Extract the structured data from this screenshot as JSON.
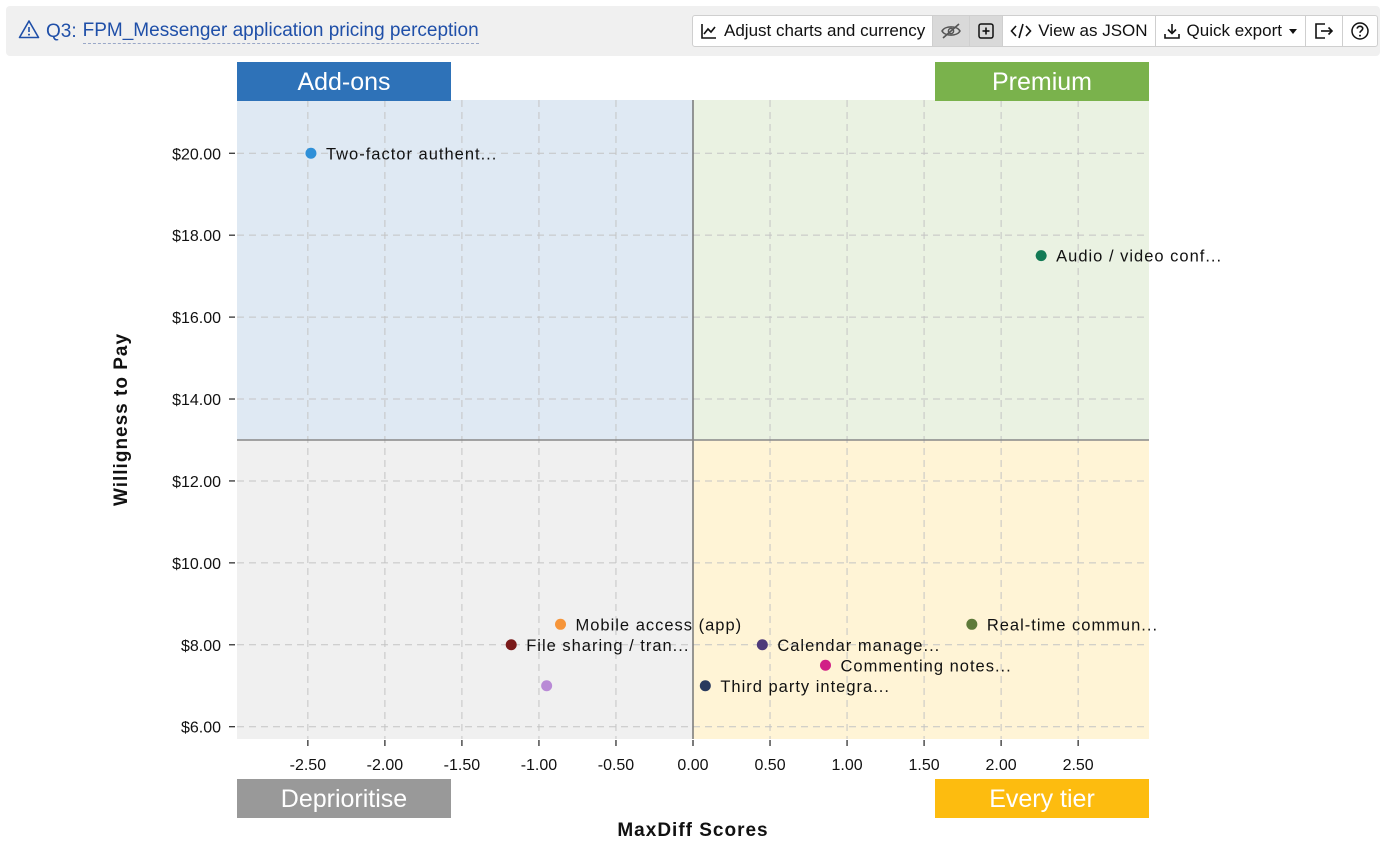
{
  "header": {
    "title_prefix": "Q3:",
    "title": "FPM_Messenger application pricing perception",
    "toolbar": {
      "adjust_label": "Adjust charts and currency",
      "json_label": "View as JSON",
      "export_label": "Quick export"
    }
  },
  "chart_data": {
    "type": "scatter",
    "xlabel": "MaxDiff Scores",
    "ylabel": "Willigness to Pay",
    "xlim": [
      -2.96,
      2.96
    ],
    "ylim": [
      5.7,
      21.3
    ],
    "x_ticks": [
      -2.5,
      -2.0,
      -1.5,
      -1.0,
      -0.5,
      0.0,
      0.5,
      1.0,
      1.5,
      2.0,
      2.5
    ],
    "x_tick_labels": [
      "-2.50",
      "-2.00",
      "-1.50",
      "-1.00",
      "-0.50",
      "0.00",
      "0.50",
      "1.00",
      "1.50",
      "2.00",
      "2.50"
    ],
    "y_ticks": [
      6,
      8,
      10,
      12,
      14,
      16,
      18,
      20
    ],
    "y_tick_labels": [
      "$6.00",
      "$8.00",
      "$10.00",
      "$12.00",
      "$14.00",
      "$16.00",
      "$18.00",
      "$20.00"
    ],
    "grid": true,
    "divider": {
      "x": 0.0,
      "y": 13.0
    },
    "quadrants": [
      {
        "label": "Add-ons",
        "position": "top-left",
        "fill": "#dfe9f3",
        "label_color": "#2e72b8"
      },
      {
        "label": "Premium",
        "position": "top-right",
        "fill": "#eaf2e2",
        "label_color": "#7ab24c"
      },
      {
        "label": "Deprioritise",
        "position": "bottom-left",
        "fill": "#f0f0f0",
        "label_color": "#999999"
      },
      {
        "label": "Every tier",
        "position": "bottom-right",
        "fill": "#fff4d6",
        "label_color": "#fdbc0f"
      }
    ],
    "points": [
      {
        "label": "Two-factor authent...",
        "x": -2.48,
        "y": 20.0,
        "color": "#2f90d8"
      },
      {
        "label": "Audio / video conf...",
        "x": 2.26,
        "y": 17.5,
        "color": "#137a55"
      },
      {
        "label": "Real-time commun...",
        "x": 1.81,
        "y": 8.5,
        "color": "#5e7a3a"
      },
      {
        "label": "Mobile access (app)",
        "x": -0.86,
        "y": 8.5,
        "color": "#f6953a"
      },
      {
        "label": "File sharing / tran...",
        "x": -1.18,
        "y": 8.0,
        "color": "#7a1a1a"
      },
      {
        "label": "Calendar manage...",
        "x": 0.45,
        "y": 8.0,
        "color": "#4e3a7a"
      },
      {
        "label": "Commenting notes...",
        "x": 0.86,
        "y": 7.5,
        "color": "#d11f86"
      },
      {
        "label": "",
        "x": -0.95,
        "y": 7.0,
        "color": "#b98ad6"
      },
      {
        "label": "Third party integra...",
        "x": 0.08,
        "y": 7.0,
        "color": "#2a3a5e"
      }
    ]
  }
}
